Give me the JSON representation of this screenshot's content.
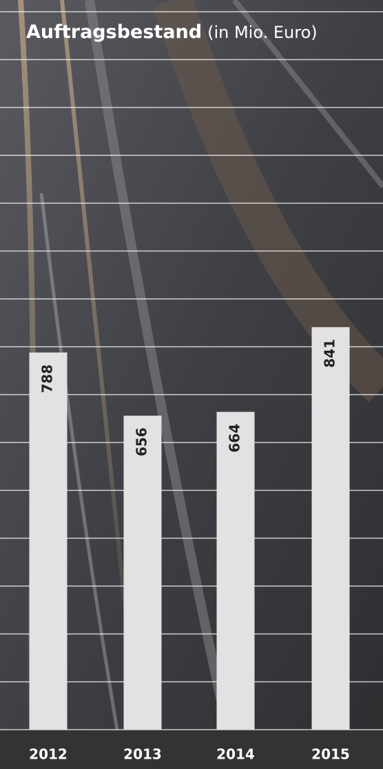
{
  "chart_data": {
    "type": "bar",
    "title": "Auftragsbestand",
    "subtitle": "(in Mio. Euro)",
    "categories": [
      "2012",
      "2013",
      "2014",
      "2015"
    ],
    "values": [
      788,
      656,
      664,
      841
    ],
    "color": "#e2e2e2",
    "ylim": [
      0,
      1500
    ],
    "grid": true
  }
}
